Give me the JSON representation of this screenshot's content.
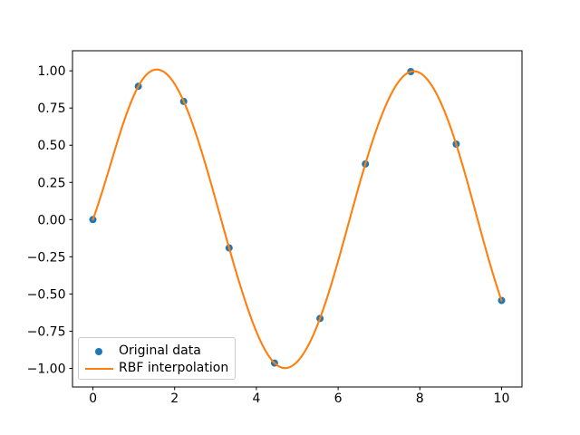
{
  "chart_data": {
    "type": "scatter",
    "title": "",
    "xlabel": "",
    "ylabel": "",
    "grid": false,
    "xlim": [
      -0.5,
      10.5
    ],
    "ylim": [
      -1.125,
      1.135
    ],
    "x_ticks": [
      0,
      2,
      4,
      6,
      8,
      10
    ],
    "x_tick_labels": [
      "0",
      "2",
      "4",
      "6",
      "8",
      "10"
    ],
    "y_ticks": [
      -1.0,
      -0.75,
      -0.5,
      -0.25,
      0.0,
      0.25,
      0.5,
      0.75,
      1.0
    ],
    "y_tick_labels": [
      "−1.00",
      "−0.75",
      "−0.50",
      "−0.25",
      "0.00",
      "0.25",
      "0.50",
      "0.75",
      "1.00"
    ],
    "series": [
      {
        "name": "Original data",
        "type": "scatter",
        "marker": "circle",
        "color": "#1f77b4",
        "x": [
          0.0,
          1.1111,
          2.2222,
          3.3333,
          4.4444,
          5.5556,
          6.6667,
          7.7778,
          8.8889,
          10.0
        ],
        "y": [
          0.0,
          0.8963,
          0.7946,
          -0.1906,
          -0.9643,
          -0.6646,
          0.3742,
          0.9946,
          0.5074,
          -0.544
        ]
      },
      {
        "name": "RBF interpolation",
        "type": "line",
        "color": "#ff7f0e",
        "interpolation": {
          "method": "rbf",
          "basis": "multiquadric",
          "epsilon": 1.0,
          "x_min": 0.0,
          "x_max": 10.0,
          "samples": 201
        }
      }
    ],
    "legend": {
      "location": "lower left",
      "entries": [
        "Original data",
        "RBF interpolation"
      ]
    },
    "axis_color": "#000000"
  }
}
